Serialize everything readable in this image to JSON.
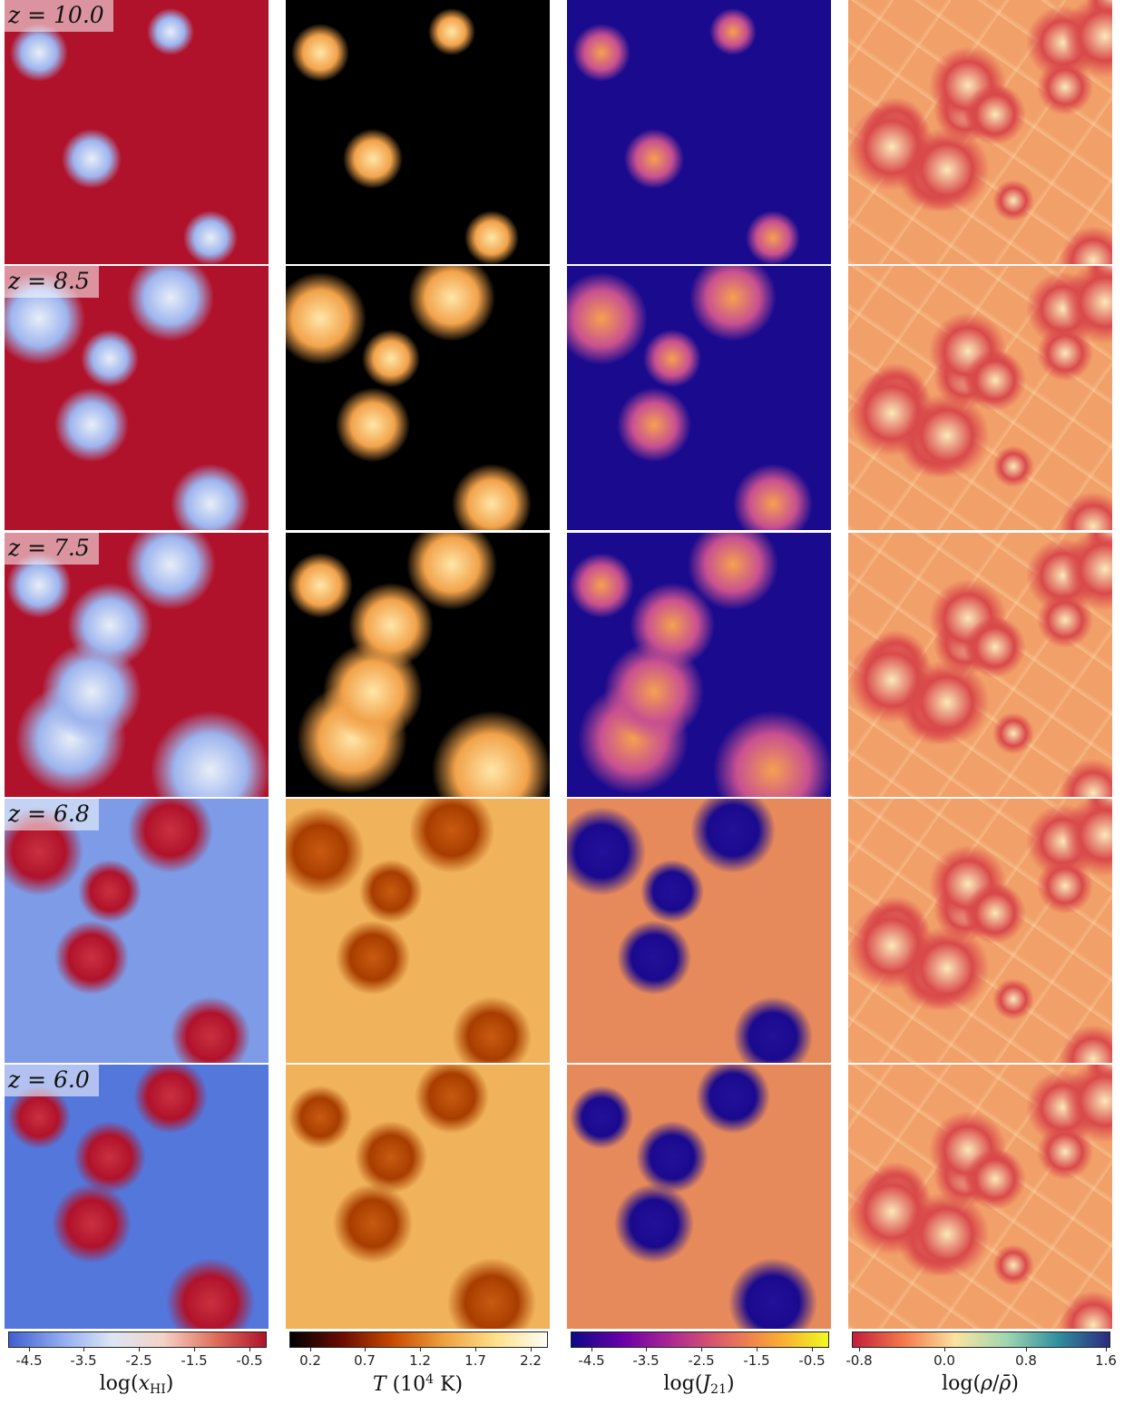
{
  "rows": [
    {
      "label": "z = 10.0"
    },
    {
      "label": "z = 8.5"
    },
    {
      "label": "z = 7.5"
    },
    {
      "label": "z = 6.8"
    },
    {
      "label": "z = 6.0"
    }
  ],
  "columns": [
    {
      "quantity": "log(xHI)",
      "title": "log(x_HI)",
      "ticks": [
        "-4.5",
        "-3.5",
        "-2.5",
        "-1.5",
        "-0.5"
      ],
      "colors": {
        "ionized": "#4a6fd4",
        "neutral": "#b0122b",
        "mid": "#f2dcd6"
      }
    },
    {
      "quantity": "T (10^4 K)",
      "title": "T (10⁴ K)",
      "ticks": [
        "0.2",
        "0.7",
        "1.2",
        "1.7",
        "2.2"
      ],
      "colors": {
        "cold": "#000000",
        "warm": "#e8902a",
        "hot": "#fffbe8"
      }
    },
    {
      "quantity": "log(J21)",
      "title": "log(J₂₁)",
      "ticks": [
        "-4.5",
        "-3.5",
        "-2.5",
        "-1.5",
        "-0.5"
      ],
      "colors": {
        "low": "#0d0887",
        "mid": "#c2458a",
        "high": "#f0f921"
      }
    },
    {
      "quantity": "log(rho/rhobar)",
      "title": "log(ρ/ρ̄)",
      "ticks": [
        "-0.8",
        "0.0",
        "0.8",
        "1.6"
      ],
      "colors": {
        "low": "#c9283a",
        "mid": "#f6e6a8",
        "high": "#2e2f8a"
      }
    }
  ],
  "colorbars": {
    "xhi_gradient": "linear-gradient(to right,#3f5fd0,#8ea9f0,#dce6f6,#f4d2c6,#e0705c,#b0122b)",
    "temp_gradient": "linear-gradient(to right,#000000,#6a0c00,#c84a00,#f0a040,#ffe08a,#fffdf5)",
    "j21_gradient": "linear-gradient(to right,#0d0887,#6a00a8,#b12a90,#e16462,#fca636,#f0f921)",
    "rho_gradient": "linear-gradient(to right,#c21d3b,#f57a4a,#fbe3a0,#9fd6b0,#2f8f9e,#2b2a7f)"
  }
}
